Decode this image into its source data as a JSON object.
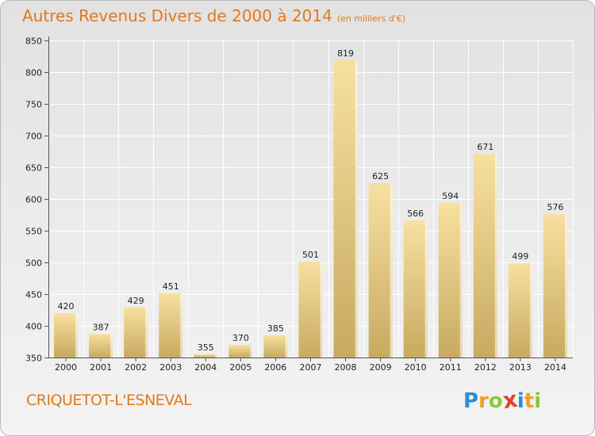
{
  "title": "Autres Revenus Divers de 2000 à 2014",
  "unit_label": "(en milliers d'€)",
  "commune": "CRIQUETOT-L'ESNEVAL",
  "logo": {
    "letters": [
      "P",
      "r",
      "o",
      "x",
      "i",
      "t",
      "i"
    ],
    "colors": [
      "#2a8fd6",
      "#f0a020",
      "#8dc63f",
      "#e8402a",
      "#2a8fd6",
      "#f0a020",
      "#8dc63f"
    ]
  },
  "chart_data": {
    "type": "bar",
    "categories": [
      "2000",
      "2001",
      "2002",
      "2003",
      "2004",
      "2005",
      "2006",
      "2007",
      "2008",
      "2009",
      "2010",
      "2011",
      "2012",
      "2013",
      "2014"
    ],
    "values": [
      420,
      387,
      429,
      451,
      355,
      370,
      385,
      501,
      819,
      625,
      566,
      594,
      671,
      499,
      576
    ],
    "value_labels": [
      "420",
      "387",
      "429",
      "451",
      "355",
      "370",
      "385",
      "501",
      "819",
      "625",
      "566",
      "594",
      "671",
      "499",
      "576"
    ],
    "ylim": [
      350,
      850
    ],
    "yticks": [
      "350",
      "400",
      "450",
      "500",
      "550",
      "600",
      "650",
      "700",
      "750",
      "800",
      "850"
    ],
    "grid": true,
    "bar_color_top": "#f7e0a0",
    "bar_color_bottom": "#c8aa60"
  }
}
